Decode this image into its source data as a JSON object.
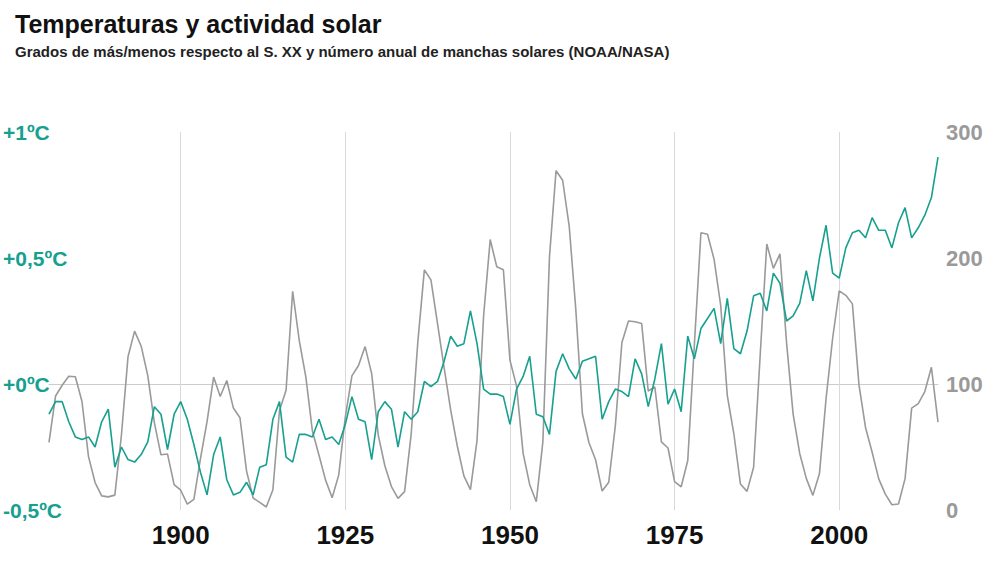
{
  "chart_data": {
    "type": "line",
    "title": "Temperaturas y actividad solar",
    "subtitle": "Grados de más/menos respecto al S. XX y número anual de manchas solares (NOAA/NASA)",
    "x": [
      1880,
      1881,
      1882,
      1883,
      1884,
      1885,
      1886,
      1887,
      1888,
      1889,
      1890,
      1891,
      1892,
      1893,
      1894,
      1895,
      1896,
      1897,
      1898,
      1899,
      1900,
      1901,
      1902,
      1903,
      1904,
      1905,
      1906,
      1907,
      1908,
      1909,
      1910,
      1911,
      1912,
      1913,
      1914,
      1915,
      1916,
      1917,
      1918,
      1919,
      1920,
      1921,
      1922,
      1923,
      1924,
      1925,
      1926,
      1927,
      1928,
      1929,
      1930,
      1931,
      1932,
      1933,
      1934,
      1935,
      1936,
      1937,
      1938,
      1939,
      1940,
      1941,
      1942,
      1943,
      1944,
      1945,
      1946,
      1947,
      1948,
      1949,
      1950,
      1951,
      1952,
      1953,
      1954,
      1955,
      1956,
      1957,
      1958,
      1959,
      1960,
      1961,
      1962,
      1963,
      1964,
      1965,
      1966,
      1967,
      1968,
      1969,
      1970,
      1971,
      1972,
      1973,
      1974,
      1975,
      1976,
      1977,
      1978,
      1979,
      1980,
      1981,
      1982,
      1983,
      1984,
      1985,
      1986,
      1987,
      1988,
      1989,
      1990,
      1991,
      1992,
      1993,
      1994,
      1995,
      1996,
      1997,
      1998,
      1999,
      2000,
      2001,
      2002,
      2003,
      2004,
      2005,
      2006,
      2007,
      2008,
      2009,
      2010,
      2011,
      2012,
      2013,
      2014,
      2015
    ],
    "series": [
      {
        "color": "#9a9a9a",
        "axis": "y2",
        "values": [
          53.7,
          90.5,
          99.0,
          106.1,
          105.8,
          86.3,
          42.4,
          21.8,
          11.2,
          10.4,
          11.8,
          59.5,
          121.7,
          142.0,
          130.0,
          106.6,
          69.4,
          43.8,
          44.4,
          20.2,
          15.7,
          4.6,
          8.5,
          40.8,
          70.1,
          105.5,
          90.1,
          102.8,
          80.9,
          73.2,
          30.9,
          9.5,
          6.0,
          2.4,
          16.1,
          79.0,
          95.0,
          173.6,
          134.6,
          105.7,
          62.7,
          43.5,
          23.7,
          9.7,
          27.9,
          74.0,
          106.5,
          114.7,
          129.7,
          108.2,
          59.4,
          35.1,
          18.6,
          9.2,
          14.6,
          60.2,
          132.8,
          190.6,
          182.6,
          148.0,
          113.0,
          79.2,
          50.8,
          27.1,
          16.1,
          55.3,
          154.3,
          214.7,
          193.0,
          190.7,
          118.9,
          98.3,
          45.0,
          20.1,
          6.6,
          54.2,
          200.7,
          269.3,
          261.7,
          225.1,
          159.0,
          76.4,
          53.4,
          39.9,
          15.0,
          22.0,
          66.8,
          132.9,
          150.0,
          149.4,
          148.0,
          94.4,
          97.6,
          54.1,
          49.2,
          22.5,
          18.4,
          39.3,
          131.0,
          220.1,
          218.9,
          198.9,
          162.4,
          91.0,
          60.5,
          20.6,
          14.8,
          33.9,
          123.0,
          211.1,
          191.8,
          203.3,
          133.0,
          76.1,
          44.9,
          25.1,
          11.6,
          28.9,
          88.3,
          136.3,
          173.9,
          170.4,
          163.6,
          99.3,
          65.3,
          45.8,
          24.7,
          12.6,
          4.2,
          4.8,
          24.9,
          80.8,
          84.5,
          94.0,
          113.3,
          69.8
        ]
      },
      {
        "color": "#17a08f",
        "values": [
          -0.12,
          -0.07,
          -0.07,
          -0.15,
          -0.21,
          -0.22,
          -0.21,
          -0.25,
          -0.15,
          -0.1,
          -0.33,
          -0.25,
          -0.3,
          -0.31,
          -0.28,
          -0.23,
          -0.09,
          -0.12,
          -0.26,
          -0.12,
          -0.07,
          -0.14,
          -0.24,
          -0.35,
          -0.44,
          -0.28,
          -0.21,
          -0.38,
          -0.44,
          -0.43,
          -0.39,
          -0.44,
          -0.33,
          -0.32,
          -0.14,
          -0.07,
          -0.29,
          -0.31,
          -0.2,
          -0.2,
          -0.21,
          -0.14,
          -0.22,
          -0.21,
          -0.24,
          -0.16,
          -0.05,
          -0.14,
          -0.15,
          -0.3,
          -0.11,
          -0.07,
          -0.1,
          -0.25,
          -0.11,
          -0.14,
          -0.11,
          0.01,
          -0.01,
          0.01,
          0.09,
          0.19,
          0.15,
          0.16,
          0.29,
          0.16,
          -0.02,
          -0.04,
          -0.04,
          -0.05,
          -0.16,
          -0.02,
          0.03,
          0.11,
          -0.12,
          -0.13,
          -0.2,
          0.05,
          0.12,
          0.06,
          0.02,
          0.09,
          0.1,
          0.11,
          -0.14,
          -0.07,
          -0.02,
          -0.03,
          -0.05,
          0.1,
          0.04,
          -0.09,
          0.02,
          0.16,
          -0.08,
          -0.02,
          -0.11,
          0.19,
          0.1,
          0.22,
          0.26,
          0.3,
          0.16,
          0.34,
          0.14,
          0.12,
          0.21,
          0.35,
          0.36,
          0.29,
          0.44,
          0.4,
          0.25,
          0.27,
          0.32,
          0.45,
          0.33,
          0.5,
          0.63,
          0.44,
          0.42,
          0.54,
          0.6,
          0.61,
          0.58,
          0.66,
          0.61,
          0.61,
          0.54,
          0.64,
          0.7,
          0.58,
          0.62,
          0.67,
          0.74,
          0.9
        ]
      }
    ],
    "xlim": [
      1880,
      2015
    ],
    "xticks": [
      1900,
      1925,
      1950,
      1975,
      2000
    ],
    "ylim": [
      -0.5,
      1
    ],
    "yticks": [
      {
        "value": -0.5,
        "label": "-0,5ºC"
      },
      {
        "value": 0,
        "label": "+0ºC"
      },
      {
        "value": 0.5,
        "label": "+0,5ºC"
      },
      {
        "value": 1,
        "label": "+1ºC"
      }
    ],
    "y2lim": [
      0,
      300
    ],
    "y2ticks": [
      0,
      100,
      200,
      300
    ],
    "grid": "x"
  }
}
